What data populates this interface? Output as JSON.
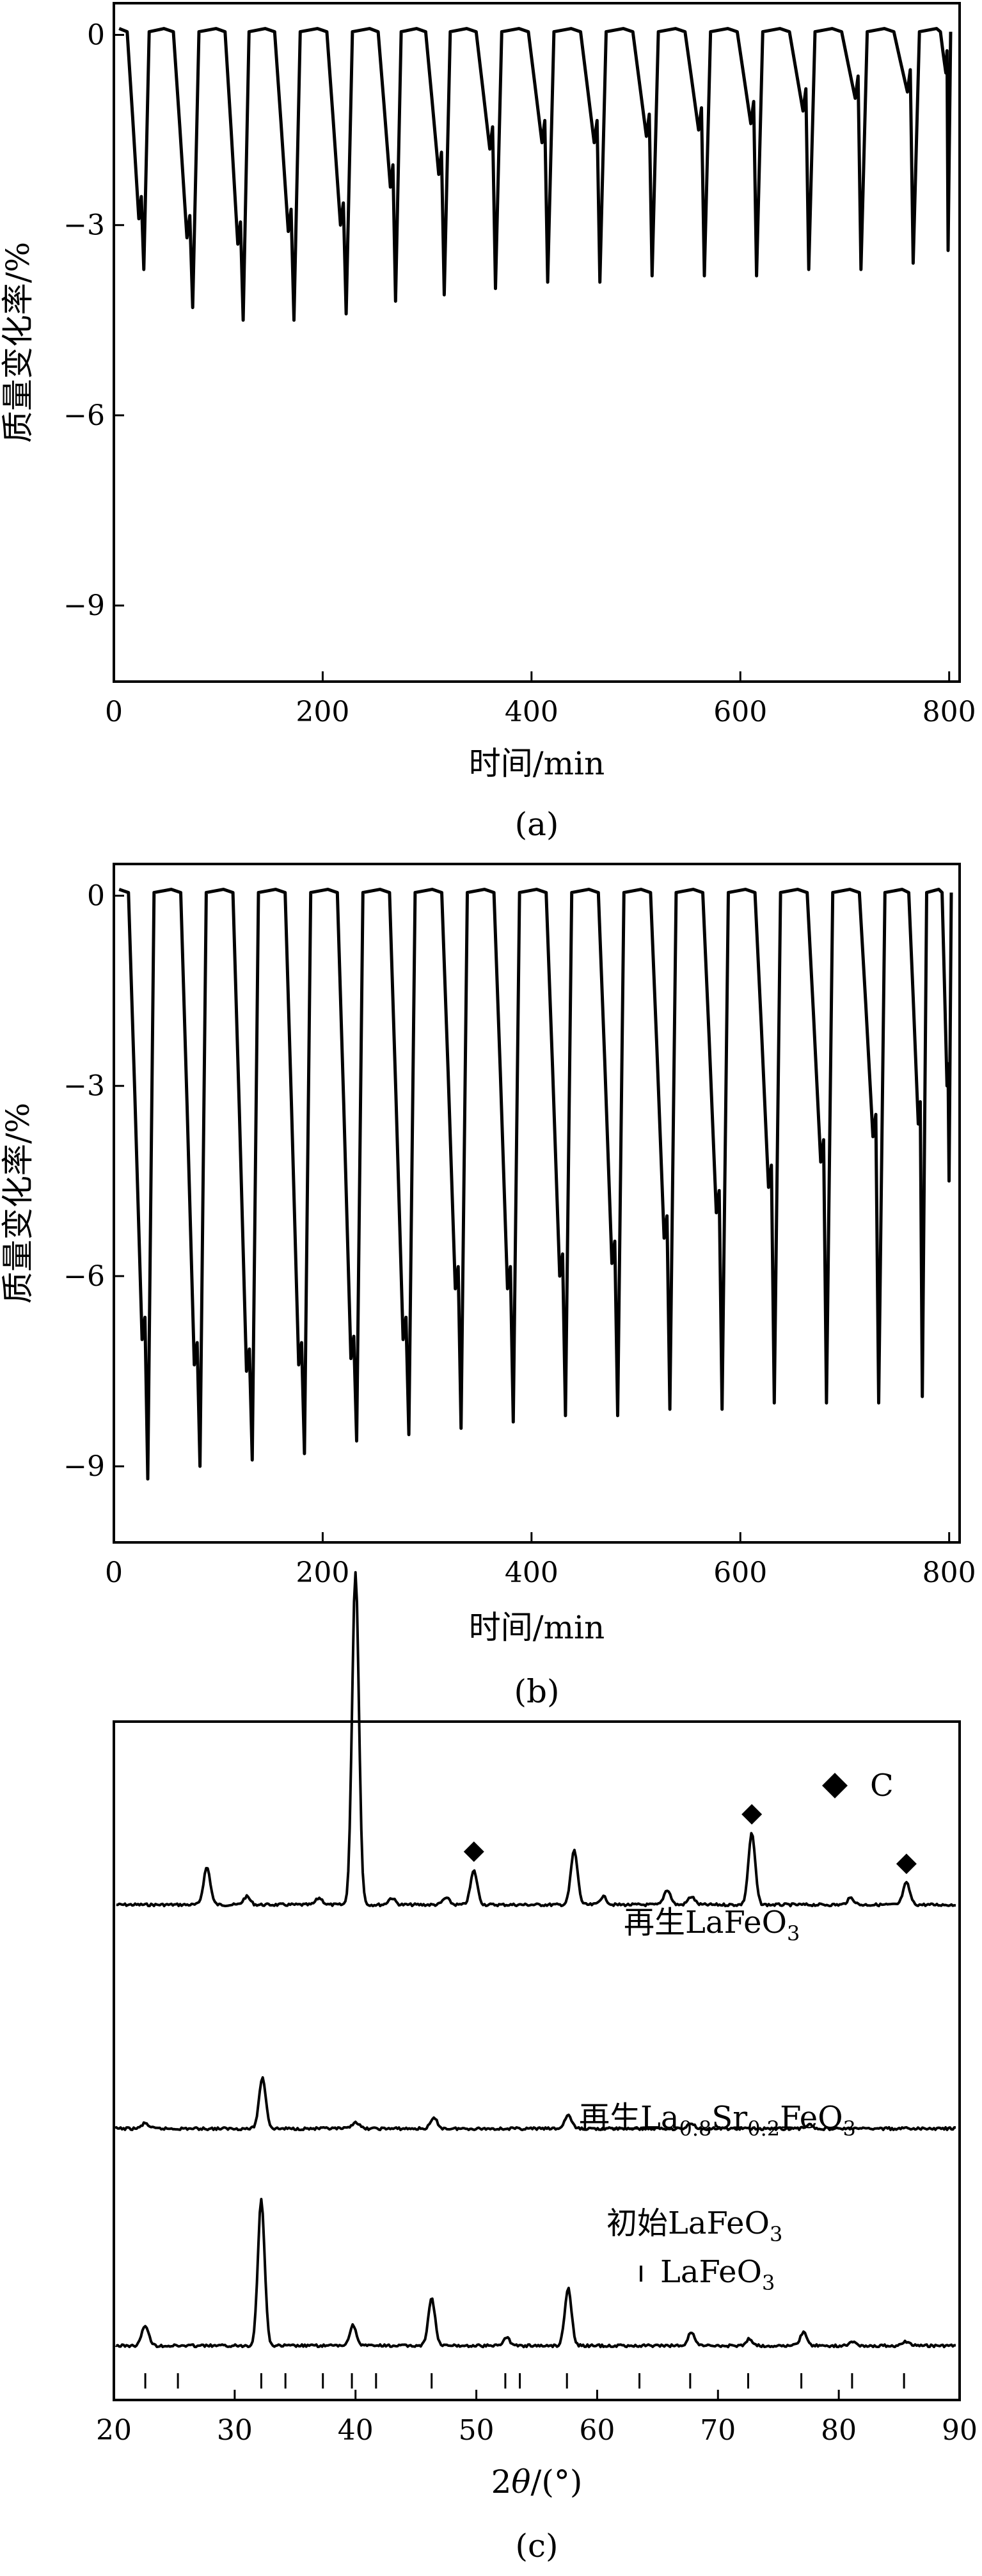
{
  "panels": [
    {
      "id": "a",
      "caption": "(a)",
      "chart_data": {
        "type": "line",
        "title": "",
        "xlabel": "时间/min",
        "ylabel": "质量变化率/%",
        "xlim": [
          0,
          810
        ],
        "ylim": [
          -10.2,
          0.5
        ],
        "xticks": [
          0,
          200,
          400,
          600,
          800
        ],
        "xtick_labels": [
          "0",
          "200",
          "400",
          "600",
          "800"
        ],
        "yticks": [
          0,
          -3,
          -6,
          -9
        ],
        "ytick_labels": [
          "0",
          "−3",
          "−6",
          "−9"
        ],
        "grid": false,
        "legend": "none",
        "cycles": [
          {
            "start": 5,
            "plateau": -2.9,
            "min": -3.7
          },
          {
            "start": 48,
            "plateau": -3.2,
            "min": -4.3
          },
          {
            "start": 98,
            "plateau": -3.3,
            "min": -4.5
          },
          {
            "start": 145,
            "plateau": -3.1,
            "min": -4.5
          },
          {
            "start": 195,
            "plateau": -3.0,
            "min": -4.4
          },
          {
            "start": 245,
            "plateau": -2.4,
            "min": -4.2
          },
          {
            "start": 290,
            "plateau": -2.2,
            "min": -4.1
          },
          {
            "start": 338,
            "plateau": -1.8,
            "min": -4.0
          },
          {
            "start": 388,
            "plateau": -1.7,
            "min": -3.9
          },
          {
            "start": 438,
            "plateau": -1.7,
            "min": -3.9
          },
          {
            "start": 488,
            "plateau": -1.6,
            "min": -3.8
          },
          {
            "start": 538,
            "plateau": -1.5,
            "min": -3.8
          },
          {
            "start": 588,
            "plateau": -1.4,
            "min": -3.8
          },
          {
            "start": 638,
            "plateau": -1.2,
            "min": -3.7
          },
          {
            "start": 688,
            "plateau": -1.0,
            "min": -3.7
          },
          {
            "start": 738,
            "plateau": -0.9,
            "min": -3.6
          },
          {
            "start": 788,
            "plateau": -0.6,
            "min": -3.4
          }
        ]
      }
    },
    {
      "id": "b",
      "caption": "(b)",
      "chart_data": {
        "type": "line",
        "title": "",
        "xlabel": "时间/min",
        "ylabel": "质量变化率/%",
        "xlim": [
          0,
          810
        ],
        "ylim": [
          -10.2,
          0.5
        ],
        "xticks": [
          0,
          200,
          400,
          600,
          800
        ],
        "xtick_labels": [
          "0",
          "200",
          "400",
          "600",
          "800"
        ],
        "yticks": [
          0,
          -3,
          -6,
          -9
        ],
        "ytick_labels": [
          "0",
          "−3",
          "−6",
          "−9"
        ],
        "grid": false,
        "legend": "none",
        "cycles": [
          {
            "start": 5,
            "plateau": -7.0,
            "min": -9.2
          },
          {
            "start": 55,
            "plateau": -7.4,
            "min": -9.0
          },
          {
            "start": 105,
            "plateau": -7.5,
            "min": -8.9
          },
          {
            "start": 155,
            "plateau": -7.4,
            "min": -8.8
          },
          {
            "start": 205,
            "plateau": -7.3,
            "min": -8.6
          },
          {
            "start": 255,
            "plateau": -7.0,
            "min": -8.5
          },
          {
            "start": 305,
            "plateau": -6.2,
            "min": -8.4
          },
          {
            "start": 355,
            "plateau": -6.2,
            "min": -8.3
          },
          {
            "start": 405,
            "plateau": -6.0,
            "min": -8.2
          },
          {
            "start": 455,
            "plateau": -5.8,
            "min": -8.2
          },
          {
            "start": 505,
            "plateau": -5.4,
            "min": -8.1
          },
          {
            "start": 555,
            "plateau": -5.0,
            "min": -8.1
          },
          {
            "start": 605,
            "plateau": -4.6,
            "min": -8.0
          },
          {
            "start": 655,
            "plateau": -4.2,
            "min": -8.0
          },
          {
            "start": 705,
            "plateau": -3.8,
            "min": -8.0
          },
          {
            "start": 755,
            "plateau": -3.6,
            "min": -7.9
          },
          {
            "start": 790,
            "plateau": -3.0,
            "min": -4.5
          }
        ]
      }
    },
    {
      "id": "c",
      "caption": "(c)",
      "chart_data": {
        "type": "line",
        "title": "",
        "xlabel_italic": "θ",
        "xlabel_prefix": "2",
        "xlabel_suffix": "/(°)",
        "xlim": [
          20,
          90
        ],
        "xticks": [
          20,
          30,
          40,
          50,
          60,
          70,
          80,
          90
        ],
        "xtick_labels": [
          "20",
          "30",
          "40",
          "50",
          "60",
          "70",
          "80",
          "90"
        ],
        "yaxis_ticks": false,
        "grid": false,
        "legend": "top-right",
        "legend_items": [
          {
            "marker": "diamond",
            "label": "C"
          },
          {
            "marker": "bar",
            "label": "LaFeO"
          }
        ],
        "series": [
          {
            "name_main": "再生LaFeO",
            "name_sub": "3",
            "name_tail": "",
            "baseline": 0.27,
            "peaks": [
              {
                "x": 27.7,
                "h": 0.055
              },
              {
                "x": 31.0,
                "h": 0.012
              },
              {
                "x": 37.0,
                "h": 0.01
              },
              {
                "x": 40.0,
                "h": 0.49
              },
              {
                "x": 43.0,
                "h": 0.01
              },
              {
                "x": 47.5,
                "h": 0.01
              },
              {
                "x": 49.8,
                "h": 0.05
              },
              {
                "x": 58.1,
                "h": 0.08
              },
              {
                "x": 60.5,
                "h": 0.012
              },
              {
                "x": 65.8,
                "h": 0.022
              },
              {
                "x": 67.8,
                "h": 0.012
              },
              {
                "x": 72.8,
                "h": 0.105
              },
              {
                "x": 81.0,
                "h": 0.01
              },
              {
                "x": 85.6,
                "h": 0.032
              }
            ],
            "c_markers": [
              49.8,
              72.8,
              85.6
            ]
          },
          {
            "name_main": "再生La",
            "name_sub": "0.8",
            "name_mid": "Sr",
            "name_sub2": "0.2",
            "name_tail": "FeO",
            "name_sub3": "3",
            "baseline": 0.6,
            "peaks": [
              {
                "x": 22.6,
                "h": 0.008
              },
              {
                "x": 32.3,
                "h": 0.075
              },
              {
                "x": 40.0,
                "h": 0.01
              },
              {
                "x": 46.5,
                "h": 0.015
              },
              {
                "x": 57.6,
                "h": 0.02
              },
              {
                "x": 67.8,
                "h": 0.008
              },
              {
                "x": 77.5,
                "h": 0.006
              }
            ],
            "c_markers": []
          },
          {
            "name_main": "初始LaFeO",
            "name_sub": "3",
            "name_tail": "",
            "baseline": 0.92,
            "peaks": [
              {
                "x": 22.6,
                "h": 0.03
              },
              {
                "x": 32.2,
                "h": 0.215
              },
              {
                "x": 39.8,
                "h": 0.03
              },
              {
                "x": 46.3,
                "h": 0.07
              },
              {
                "x": 52.5,
                "h": 0.012
              },
              {
                "x": 57.6,
                "h": 0.085
              },
              {
                "x": 67.8,
                "h": 0.02
              },
              {
                "x": 72.6,
                "h": 0.01
              },
              {
                "x": 77.1,
                "h": 0.02
              },
              {
                "x": 81.2,
                "h": 0.006
              },
              {
                "x": 85.6,
                "h": 0.006
              }
            ],
            "c_markers": []
          }
        ],
        "reference_ticks": [
          22.6,
          25.3,
          32.2,
          34.2,
          37.3,
          39.7,
          41.7,
          46.3,
          52.4,
          53.6,
          57.5,
          63.5,
          67.7,
          72.5,
          76.9,
          81.1,
          85.4
        ],
        "legend_lafeo_sub": "3"
      }
    }
  ]
}
